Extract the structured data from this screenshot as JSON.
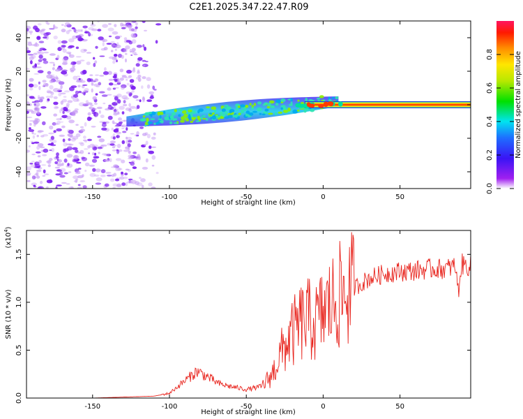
{
  "title": "C2E1.2025.347.22.47.R09",
  "chart_data": [
    {
      "type": "heatmap",
      "name": "spectrogram",
      "xlabel": "Height of straight line (km)",
      "ylabel": "Frequency (Hz)",
      "xlim": [
        -193,
        96
      ],
      "ylim": [
        -50,
        50
      ],
      "xticks": [
        -150,
        -100,
        -50,
        0,
        50
      ],
      "yticks": [
        -40,
        -20,
        0,
        20,
        40
      ],
      "colorbar": {
        "label": "Normalized spectral amplitude",
        "range": [
          0,
          1
        ],
        "ticks": [
          0.0,
          0.2,
          0.4,
          0.6,
          0.8
        ]
      },
      "features": [
        {
          "name": "diffuse noise",
          "x_range": [
            -193,
            -107
          ],
          "freq_range": [
            -50,
            50
          ],
          "amplitude": 0.1
        },
        {
          "name": "rising signal band",
          "x_range": [
            -128,
            10
          ],
          "freq_start": -10,
          "freq_end": 2,
          "amplitude": 0.35
        },
        {
          "name": "steady tone",
          "x_range": [
            -20,
            96
          ],
          "freq": 0,
          "amplitude": 0.95
        }
      ]
    },
    {
      "type": "line",
      "name": "snr",
      "xlabel": "Height of straight line (km)",
      "ylabel": "SNR (10 * v/v)",
      "multiplier_label": "(x10",
      "multiplier_exp": "4",
      "xlim": [
        -193,
        96
      ],
      "ylim": [
        0,
        1.75
      ],
      "xticks": [
        -150,
        -100,
        -50,
        0,
        50
      ],
      "yticks": [
        "0.0",
        "0.5",
        "1.0",
        "1.5"
      ],
      "ytick_values": [
        0.0,
        0.5,
        1.0,
        1.5
      ],
      "series": [
        {
          "name": "SNR",
          "color": "#e8231c",
          "x": [
            -193,
            -150,
            -110,
            -100,
            -90,
            -82,
            -75,
            -68,
            -60,
            -50,
            -40,
            -33,
            -28,
            -22,
            -15,
            -10,
            -5,
            0,
            10,
            20,
            30,
            40,
            50,
            60,
            70,
            80,
            86,
            88,
            90,
            96
          ],
          "y": [
            0.0,
            0.0,
            0.02,
            0.05,
            0.18,
            0.28,
            0.22,
            0.15,
            0.12,
            0.09,
            0.12,
            0.25,
            0.45,
            0.62,
            0.78,
            0.82,
            0.78,
            0.9,
            1.05,
            1.15,
            1.25,
            1.3,
            1.32,
            1.33,
            1.35,
            1.35,
            1.38,
            1.1,
            1.4,
            1.37
          ]
        }
      ]
    }
  ]
}
